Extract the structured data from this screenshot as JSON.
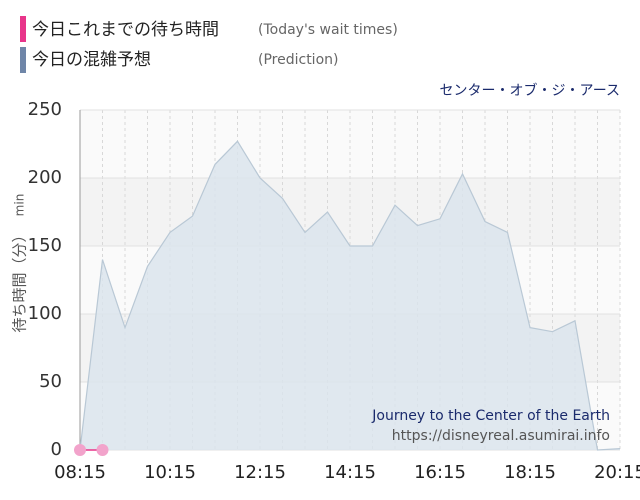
{
  "chart_data": {
    "type": "area",
    "subtitle": "センター・オブ・ジ・アース",
    "ylabel": "待ち時間（分）",
    "yunit": "min",
    "annotations": [
      "Journey to the Center of the Earth",
      "https://disneyreal.asumirai.info"
    ],
    "categories": [
      "08:15",
      null,
      null,
      null,
      "10:15",
      null,
      null,
      null,
      "12:15",
      null,
      null,
      null,
      "14:15",
      null,
      null,
      null,
      "16:15",
      null,
      null,
      null,
      "18:15",
      null,
      null,
      null,
      "20:15"
    ],
    "series": [
      {
        "name": "今日これまでの待ち時間",
        "note": "(Today's wait times)",
        "color": "#e8358a",
        "marker_color": "#f2a3cb",
        "values": [
          0,
          0,
          null,
          null,
          null,
          null,
          null,
          null,
          null,
          null,
          null,
          null,
          null,
          null,
          null,
          null,
          null,
          null,
          null,
          null,
          null,
          null,
          null,
          null,
          null
        ]
      },
      {
        "name": "今日の混雑予想",
        "note": "(Prediction)",
        "color": "#6f86a8",
        "fill": "#dbe4ec",
        "stroke": "#b9c8d5",
        "values": [
          0,
          140,
          90,
          135,
          160,
          172,
          210,
          227,
          200,
          185,
          160,
          175,
          150,
          150,
          180,
          165,
          170,
          203,
          168,
          160,
          90,
          87,
          95,
          0,
          1
        ]
      }
    ],
    "ylim": [
      0,
      250
    ],
    "yticks": [
      0,
      50,
      100,
      150,
      200,
      250
    ],
    "grid": true
  }
}
